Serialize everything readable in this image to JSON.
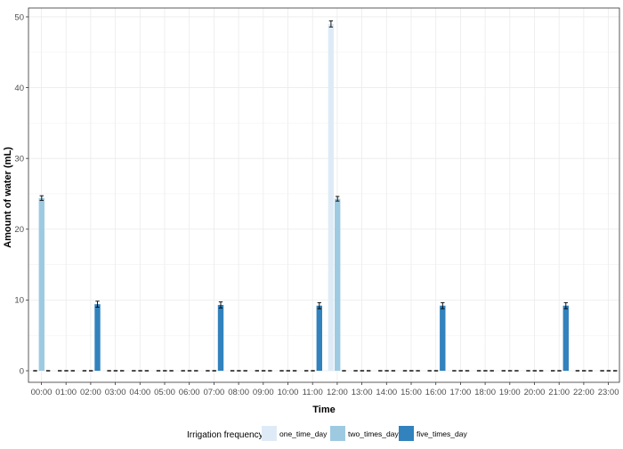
{
  "chart_data": {
    "type": "bar",
    "title": "",
    "xlabel": "Time",
    "ylabel": "Amount of water (mL)",
    "ylim": [
      0,
      51
    ],
    "yticks": [
      0,
      10,
      20,
      30,
      40,
      50
    ],
    "grid": true,
    "categories": [
      "00:00",
      "01:00",
      "02:00",
      "03:00",
      "04:00",
      "05:00",
      "06:00",
      "07:00",
      "08:00",
      "09:00",
      "10:00",
      "11:00",
      "12:00",
      "13:00",
      "14:00",
      "15:00",
      "16:00",
      "17:00",
      "18:00",
      "19:00",
      "20:00",
      "21:00",
      "22:00",
      "23:00"
    ],
    "legend": {
      "title": "Irrigation frequency",
      "position": "bottom"
    },
    "series": [
      {
        "name": "one_time_day",
        "color": "#deebf7",
        "values": [
          0,
          0,
          0,
          0,
          0,
          0,
          0,
          0,
          0,
          0,
          0,
          0,
          49,
          0,
          0,
          0,
          0,
          0,
          0,
          0,
          0,
          0,
          0,
          0
        ],
        "errors": [
          0,
          0,
          0,
          0,
          0,
          0,
          0,
          0,
          0,
          0,
          0,
          0,
          0.3,
          0,
          0,
          0,
          0,
          0,
          0,
          0,
          0,
          0,
          0,
          0
        ]
      },
      {
        "name": "two_times_day",
        "color": "#9ecae1",
        "values": [
          24.4,
          0,
          0,
          0,
          0,
          0,
          0,
          0,
          0,
          0,
          0,
          0,
          24.3,
          0,
          0,
          0,
          0,
          0,
          0,
          0,
          0,
          0,
          0,
          0
        ],
        "errors": [
          0.2,
          0,
          0,
          0,
          0,
          0,
          0,
          0,
          0,
          0,
          0,
          0,
          0.2,
          0,
          0,
          0,
          0,
          0,
          0,
          0,
          0,
          0,
          0,
          0
        ]
      },
      {
        "name": "five_times_day",
        "color": "#3182bd",
        "values": [
          0,
          0,
          9.4,
          0,
          0,
          0,
          0,
          9.3,
          0,
          0,
          0,
          9.2,
          0,
          0,
          0,
          0,
          9.2,
          0,
          0,
          0,
          0,
          9.2,
          0,
          0
        ],
        "errors": [
          0,
          0,
          0.3,
          0,
          0,
          0,
          0,
          0.3,
          0,
          0,
          0,
          0.3,
          0,
          0,
          0,
          0,
          0.3,
          0,
          0,
          0,
          0,
          0.3,
          0,
          0
        ]
      }
    ]
  }
}
